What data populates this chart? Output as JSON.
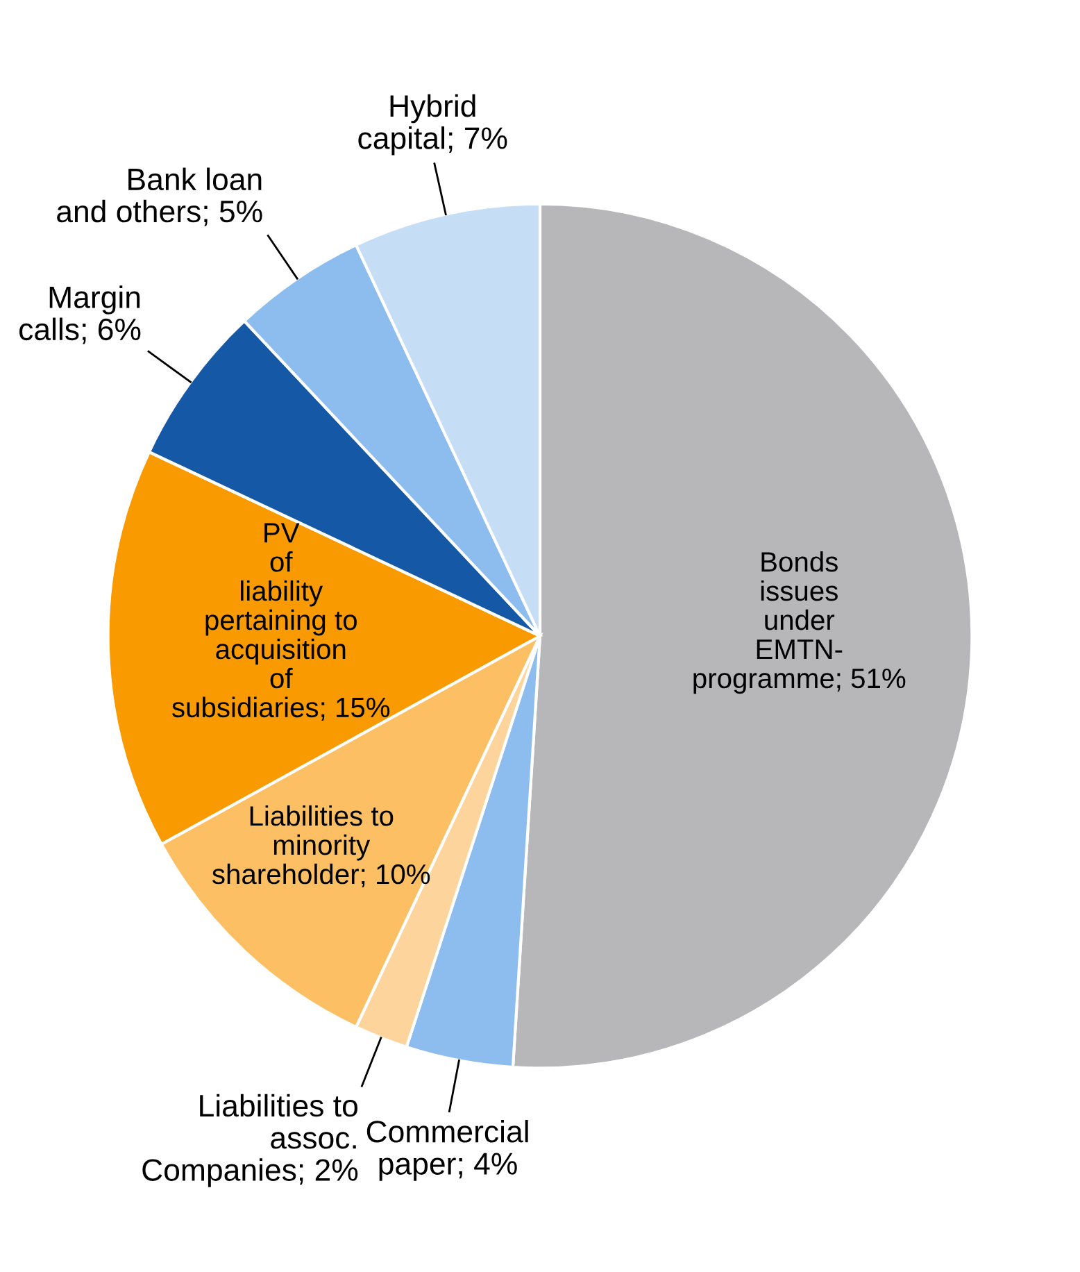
{
  "chart_data": {
    "type": "pie",
    "categories": [
      "Bonds\nissues\nunder\nEMTN-\nprogramme",
      "Commercial\npaper",
      "Liabilities to\nassoc.\nCompanies",
      "Liabilities to\nminority\nshareholder",
      "PV\nof\nliability\npertaining to\nacquisition\nof\nsubsidiaries",
      "Margin\ncalls",
      "Bank loan\nand others",
      "Hybrid\ncapital"
    ],
    "values": [
      51,
      4,
      2,
      10,
      15,
      6,
      5,
      7
    ],
    "value_labels": [
      "51%",
      "4%",
      "2%",
      "10%",
      "15%",
      "6%",
      "5%",
      "7%"
    ],
    "colors": [
      "#b7b7b9",
      "#8dbdef",
      "#fdd59c",
      "#fdbf63",
      "#f99b00",
      "#1559a6",
      "#8dbdef",
      "#c5ddf5"
    ]
  }
}
